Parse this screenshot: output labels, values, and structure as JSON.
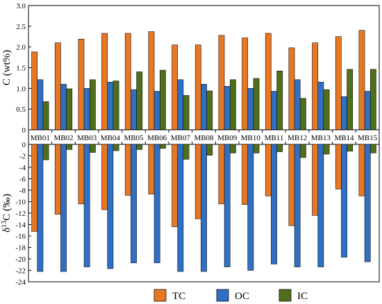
{
  "chart_data": [
    {
      "type": "bar",
      "panel": "top",
      "ylabel": "C (wt%)",
      "ylim": [
        0,
        3.0
      ],
      "yticks": [
        0,
        0.5,
        1.0,
        1.5,
        2.0,
        2.5,
        3.0
      ],
      "ytick_labels": [
        "0",
        "0.5",
        "1.0",
        "1.5",
        "2.0",
        "2.5",
        "3.0"
      ],
      "categories": [
        "MB01",
        "MB02",
        "MB03",
        "MB04",
        "MB05",
        "MB06",
        "MB07",
        "MB08",
        "MB09",
        "MB10",
        "MB11",
        "MB12",
        "MB13",
        "MB14",
        "MB15"
      ],
      "series": [
        {
          "name": "TC",
          "color": "#e87722",
          "values": [
            1.88,
            2.1,
            2.19,
            2.33,
            2.33,
            2.37,
            2.05,
            2.05,
            2.28,
            2.22,
            2.33,
            1.98,
            2.1,
            2.25,
            2.4
          ]
        },
        {
          "name": "OC",
          "color": "#2f6fc4",
          "values": [
            1.21,
            1.1,
            1.0,
            1.15,
            0.97,
            0.93,
            1.21,
            1.1,
            1.05,
            1.0,
            0.93,
            1.21,
            1.15,
            0.8,
            0.93
          ]
        },
        {
          "name": "IC",
          "color": "#4f6f1a",
          "values": [
            0.68,
            0.99,
            1.21,
            1.18,
            1.4,
            1.44,
            0.83,
            0.94,
            1.21,
            1.24,
            1.42,
            0.76,
            0.97,
            1.46,
            1.46
          ]
        }
      ],
      "grid": false
    },
    {
      "type": "bar",
      "panel": "bottom",
      "ylabel": "δ13C (‰)",
      "ylim": [
        -24,
        0
      ],
      "yticks": [
        0,
        -2,
        -4,
        -6,
        -8,
        -10,
        -12,
        -14,
        -16,
        -18,
        -20,
        -22,
        -24
      ],
      "ytick_labels": [
        "0",
        "-2",
        "-4",
        "-6",
        "-8",
        "-10",
        "-12",
        "-14",
        "-16",
        "-18",
        "-20",
        "-22",
        "-24"
      ],
      "categories": [
        "MB01",
        "MB02",
        "MB03",
        "MB04",
        "MB05",
        "MB06",
        "MB07",
        "MB08",
        "MB09",
        "MB10",
        "MB11",
        "MB12",
        "MB13",
        "MB14",
        "MB15"
      ],
      "series": [
        {
          "name": "TC",
          "color": "#e87722",
          "values": [
            -15.2,
            -12.2,
            -10.4,
            -11.4,
            -8.9,
            -8.7,
            -14.4,
            -13.0,
            -10.4,
            -10.5,
            -9.0,
            -14.2,
            -12.4,
            -7.8,
            -9.0
          ]
        },
        {
          "name": "OC",
          "color": "#2f6fc4",
          "values": [
            -22.2,
            -22.2,
            -21.4,
            -21.7,
            -20.7,
            -20.7,
            -22.2,
            -22.2,
            -21.4,
            -22.0,
            -20.9,
            -21.4,
            -21.4,
            -19.7,
            -20.5
          ]
        },
        {
          "name": "IC",
          "color": "#4f6f1a",
          "values": [
            -2.7,
            -0.9,
            -1.4,
            -1.1,
            -0.9,
            -0.7,
            -2.6,
            -1.9,
            -1.5,
            -1.5,
            -1.3,
            -2.3,
            -1.7,
            -1.2,
            -1.5
          ]
        }
      ],
      "grid": false
    }
  ],
  "legend": {
    "placement": "bottom-center",
    "items": [
      {
        "label": "TC",
        "color": "#e87722"
      },
      {
        "label": "OC",
        "color": "#2f6fc4"
      },
      {
        "label": "IC",
        "color": "#4f6f1a"
      }
    ]
  }
}
